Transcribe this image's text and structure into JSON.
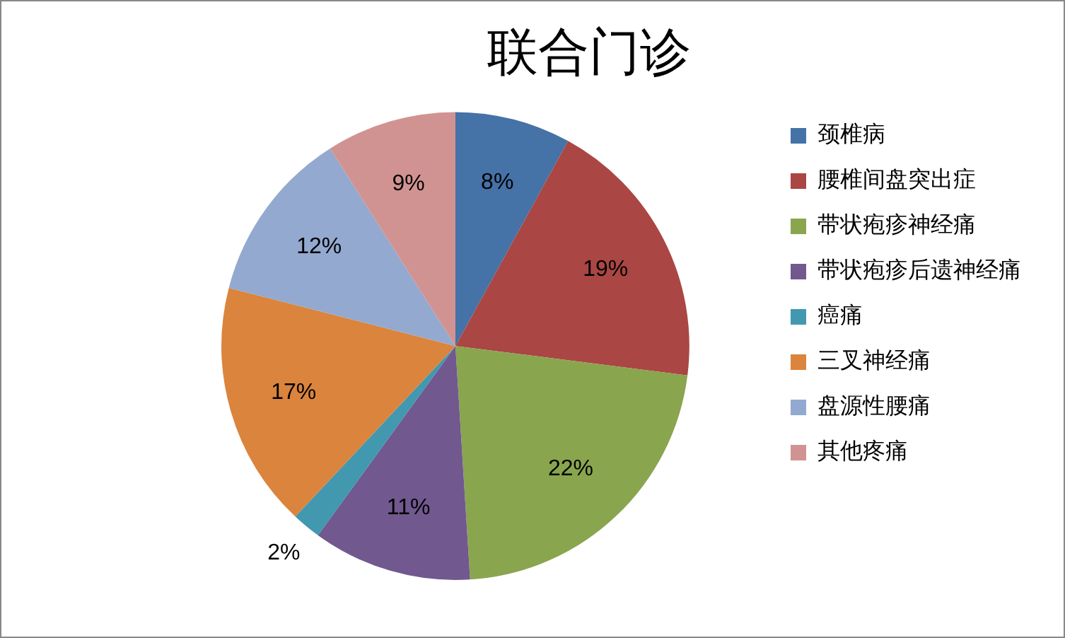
{
  "chart_data": {
    "type": "pie",
    "title": "联合门诊",
    "categories": [
      "颈椎病",
      "腰椎间盘突出症",
      "带状疱疹神经痛",
      "带状疱疹后遗神经痛",
      "癌痛",
      "三叉神经痛",
      "盘源性腰痛",
      "其他疼痛"
    ],
    "values": [
      8,
      19,
      22,
      11,
      2,
      17,
      12,
      9
    ],
    "value_labels": [
      "8%",
      "19%",
      "22%",
      "11%",
      "2%",
      "17%",
      "12%",
      "9%"
    ],
    "colors": [
      "#4572a7",
      "#aa4643",
      "#89a54e",
      "#71588f",
      "#4198af",
      "#db843d",
      "#93a9cf",
      "#d19392"
    ],
    "legend": "right"
  }
}
